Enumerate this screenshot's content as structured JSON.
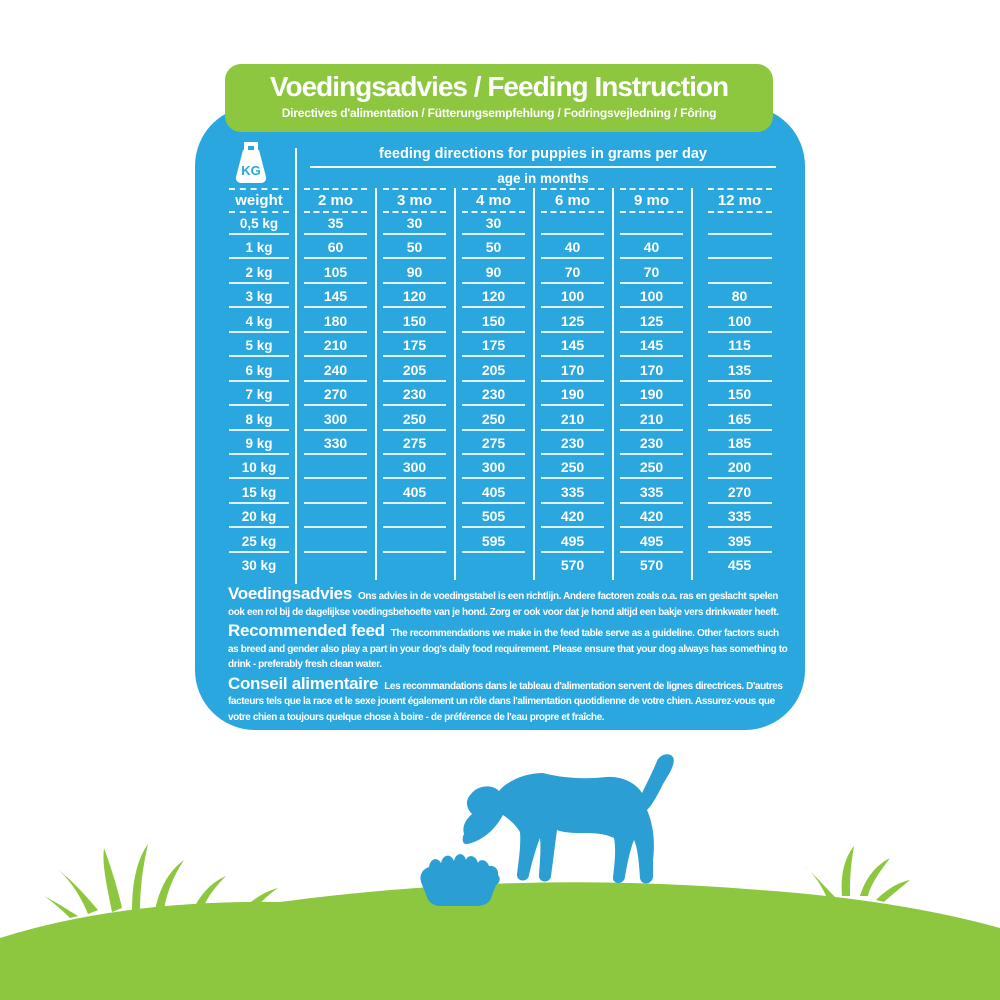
{
  "header": {
    "title": "Voedingsadvies / Feeding Instruction",
    "subtitle": "Directives d'alimentation / Fütterungsempfehlung / Fodringsvejledning / Fôring"
  },
  "table": {
    "kg_icon_label": "KG",
    "top_caption": "feeding directions for puppies in grams per day",
    "sub_caption": "age in months",
    "weight_header": "weight",
    "age_headers": [
      "2 mo",
      "3 mo",
      "4 mo",
      "6 mo",
      "9 mo",
      "12 mo"
    ],
    "rows": [
      {
        "weight": "0,5 kg",
        "values": [
          "35",
          "30",
          "30",
          "",
          "",
          ""
        ]
      },
      {
        "weight": "1 kg",
        "values": [
          "60",
          "50",
          "50",
          "40",
          "40",
          ""
        ]
      },
      {
        "weight": "2 kg",
        "values": [
          "105",
          "90",
          "90",
          "70",
          "70",
          ""
        ]
      },
      {
        "weight": "3 kg",
        "values": [
          "145",
          "120",
          "120",
          "100",
          "100",
          "80"
        ]
      },
      {
        "weight": "4 kg",
        "values": [
          "180",
          "150",
          "150",
          "125",
          "125",
          "100"
        ]
      },
      {
        "weight": "5 kg",
        "values": [
          "210",
          "175",
          "175",
          "145",
          "145",
          "115"
        ]
      },
      {
        "weight": "6 kg",
        "values": [
          "240",
          "205",
          "205",
          "170",
          "170",
          "135"
        ]
      },
      {
        "weight": "7 kg",
        "values": [
          "270",
          "230",
          "230",
          "190",
          "190",
          "150"
        ]
      },
      {
        "weight": "8 kg",
        "values": [
          "300",
          "250",
          "250",
          "210",
          "210",
          "165"
        ]
      },
      {
        "weight": "9 kg",
        "values": [
          "330",
          "275",
          "275",
          "230",
          "230",
          "185"
        ]
      },
      {
        "weight": "10 kg",
        "values": [
          "",
          "300",
          "300",
          "250",
          "250",
          "200"
        ]
      },
      {
        "weight": "15 kg",
        "values": [
          "",
          "405",
          "405",
          "335",
          "335",
          "270"
        ]
      },
      {
        "weight": "20 kg",
        "values": [
          "",
          "",
          "505",
          "420",
          "420",
          "335"
        ]
      },
      {
        "weight": "25 kg",
        "values": [
          "",
          "",
          "595",
          "495",
          "495",
          "395"
        ]
      },
      {
        "weight": "30 kg",
        "values": [
          "",
          "",
          "",
          "570",
          "570",
          "455"
        ]
      }
    ]
  },
  "notes": [
    {
      "title": "Voedingsadvies",
      "text": "Ons advies in de voedingstabel is een richtlijn. Andere factoren zoals o.a. ras en geslacht spelen ook een rol bij de dagelijkse voedingsbehoefte van je hond. Zorg er ook voor dat je hond altijd een bakje vers drinkwater heeft."
    },
    {
      "title": "Recommended feed",
      "text": "The recommendations we make in the feed table serve as a guideline. Other factors such as breed and gender also play a part in your dog's daily food requirement. Please ensure that your dog always has something to drink - preferably fresh clean water."
    },
    {
      "title": "Conseil alimentaire",
      "text": "Les recommandations dans le tableau d'alimentation servent de lignes directrices. D'autres facteurs tels que la race et le sexe jouent également un rôle dans l'alimentation quotidienne de votre chien. Assurez-vous que votre chien a toujours quelque chose à boire - de préférence de l'eau propre et fraîche."
    }
  ],
  "icons": {
    "kg_weight": "kg-weight-icon",
    "dog": "dog-eating-from-bowl-illustration",
    "bowl": "food-bowl-icon",
    "grass": "grass-hill-illustration"
  },
  "colors": {
    "green": "#8DC63F",
    "blue": "#2AA7DF",
    "dog_blue": "#2B9ED4",
    "text": "#FFFFFF"
  }
}
